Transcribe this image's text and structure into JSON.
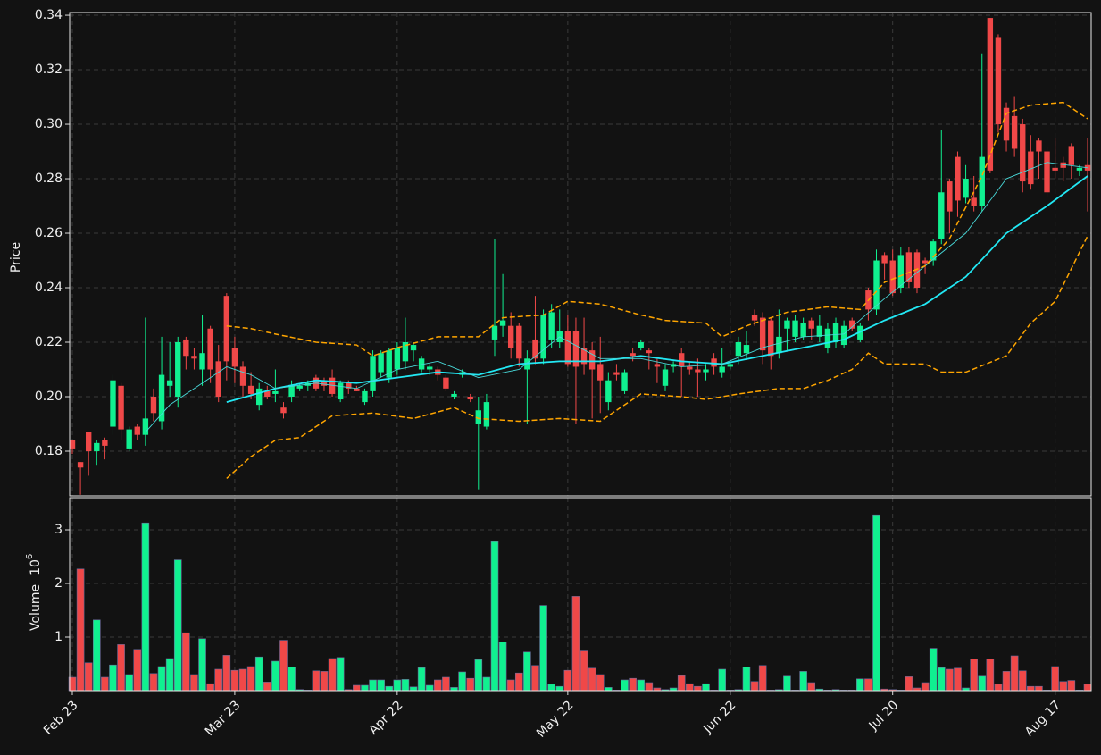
{
  "chart_data": {
    "type": "candlestick",
    "ylabel": "Price",
    "volume_label": "Volume",
    "volume_unit": {
      "base": "10",
      "exponent": "6"
    },
    "up_color": "#10f090",
    "down_color": "#f04848",
    "grid": true,
    "categories": [
      "Feb 23",
      null,
      null,
      null,
      null,
      null,
      null,
      null,
      null,
      null,
      null,
      null,
      null,
      null,
      null,
      null,
      null,
      null,
      null,
      null,
      "Mar 23",
      null,
      null,
      null,
      null,
      null,
      null,
      null,
      null,
      null,
      null,
      null,
      null,
      null,
      null,
      null,
      null,
      null,
      null,
      null,
      "Apr 22",
      null,
      null,
      null,
      null,
      null,
      null,
      null,
      null,
      null,
      null,
      null,
      null,
      null,
      null,
      null,
      null,
      null,
      null,
      null,
      null,
      "May 22",
      null,
      null,
      null,
      null,
      null,
      null,
      null,
      null,
      null,
      null,
      null,
      null,
      null,
      null,
      null,
      null,
      null,
      null,
      null,
      "Jun 22",
      null,
      null,
      null,
      null,
      null,
      null,
      null,
      null,
      null,
      null,
      null,
      null,
      null,
      null,
      null,
      null,
      null,
      null,
      null,
      "Jul 20",
      null,
      null,
      null,
      null,
      null,
      null,
      null,
      null,
      null,
      null,
      null,
      null,
      null,
      null,
      null,
      null,
      null,
      null,
      null,
      "Aug 17",
      null,
      null,
      null,
      null
    ],
    "open": [
      0.184,
      0.176,
      0.187,
      0.18,
      0.184,
      0.189,
      0.204,
      0.181,
      0.189,
      0.186,
      0.2,
      0.191,
      0.204,
      0.2,
      0.221,
      0.215,
      0.21,
      0.225,
      0.213,
      0.237,
      0.218,
      0.211,
      0.204,
      0.197,
      0.202,
      0.201,
      0.196,
      0.2,
      0.203,
      0.204,
      0.207,
      0.206,
      0.207,
      0.199,
      0.205,
      0.203,
      0.198,
      0.202,
      0.209,
      0.207,
      0.21,
      0.213,
      0.217,
      0.21,
      0.21,
      0.21,
      0.207,
      0.2,
      0.208,
      0.2,
      0.19,
      0.189,
      0.221,
      0.226,
      0.226,
      0.226,
      0.21,
      0.221,
      0.214,
      0.221,
      0.22,
      0.224,
      0.224,
      0.218,
      0.217,
      0.212,
      0.198,
      0.209,
      0.202,
      0.216,
      0.218,
      0.217,
      0.212,
      0.204,
      0.211,
      0.216,
      0.211,
      0.21,
      0.209,
      0.214,
      0.209,
      0.211,
      0.215,
      0.216,
      0.23,
      0.229,
      0.228,
      0.216,
      0.225,
      0.222,
      0.222,
      0.228,
      0.222,
      0.218,
      0.22,
      0.219,
      0.228,
      0.221,
      0.239,
      0.232,
      0.252,
      0.25,
      0.24,
      0.253,
      0.253,
      0.25,
      0.25,
      0.258,
      0.279,
      0.288,
      0.273,
      0.273,
      0.27,
      0.339,
      0.332,
      0.306,
      0.303,
      0.3,
      0.29,
      0.294,
      0.29,
      0.284,
      0.286,
      0.292,
      0.283,
      0.285
    ],
    "high": [
      0.184,
      0.176,
      0.187,
      0.184,
      0.185,
      0.208,
      0.205,
      0.189,
      0.19,
      0.229,
      0.203,
      0.222,
      0.22,
      0.222,
      0.222,
      0.218,
      0.23,
      0.226,
      0.219,
      0.238,
      0.222,
      0.213,
      0.209,
      0.205,
      0.204,
      0.21,
      0.198,
      0.206,
      0.205,
      0.206,
      0.208,
      0.207,
      0.21,
      0.206,
      0.206,
      0.204,
      0.203,
      0.217,
      0.217,
      0.218,
      0.22,
      0.229,
      0.22,
      0.215,
      0.212,
      0.211,
      0.208,
      0.202,
      0.21,
      0.201,
      0.2,
      0.201,
      0.258,
      0.245,
      0.231,
      0.227,
      0.217,
      0.237,
      0.232,
      0.234,
      0.232,
      0.23,
      0.229,
      0.229,
      0.22,
      0.222,
      0.209,
      0.212,
      0.21,
      0.218,
      0.221,
      0.218,
      0.214,
      0.212,
      0.213,
      0.218,
      0.213,
      0.214,
      0.212,
      0.216,
      0.218,
      0.213,
      0.222,
      0.224,
      0.232,
      0.231,
      0.229,
      0.232,
      0.229,
      0.23,
      0.229,
      0.229,
      0.23,
      0.227,
      0.229,
      0.228,
      0.229,
      0.227,
      0.24,
      0.254,
      0.253,
      0.254,
      0.255,
      0.255,
      0.254,
      0.251,
      0.258,
      0.298,
      0.28,
      0.29,
      0.285,
      0.281,
      0.326,
      0.339,
      0.333,
      0.308,
      0.31,
      0.302,
      0.296,
      0.295,
      0.292,
      0.295,
      0.288,
      0.293,
      0.285,
      0.295
    ],
    "low": [
      0.179,
      0.164,
      0.171,
      0.175,
      0.177,
      0.186,
      0.184,
      0.18,
      0.184,
      0.182,
      0.191,
      0.188,
      0.2,
      0.196,
      0.21,
      0.21,
      0.204,
      0.205,
      0.198,
      0.206,
      0.205,
      0.2,
      0.199,
      0.195,
      0.199,
      0.198,
      0.192,
      0.198,
      0.202,
      0.202,
      0.202,
      0.202,
      0.2,
      0.198,
      0.201,
      0.202,
      0.197,
      0.2,
      0.207,
      0.205,
      0.208,
      0.21,
      0.213,
      0.209,
      0.208,
      0.206,
      0.202,
      0.199,
      0.207,
      0.198,
      0.166,
      0.188,
      0.215,
      0.222,
      0.214,
      0.211,
      0.19,
      0.212,
      0.212,
      0.218,
      0.218,
      0.211,
      0.19,
      0.208,
      0.192,
      0.194,
      0.195,
      0.206,
      0.201,
      0.213,
      0.217,
      0.21,
      0.205,
      0.202,
      0.209,
      0.2,
      0.208,
      0.2,
      0.206,
      0.208,
      0.207,
      0.21,
      0.212,
      0.214,
      0.226,
      0.212,
      0.21,
      0.214,
      0.217,
      0.22,
      0.221,
      0.221,
      0.22,
      0.216,
      0.218,
      0.218,
      0.224,
      0.22,
      0.228,
      0.23,
      0.243,
      0.237,
      0.238,
      0.24,
      0.238,
      0.245,
      0.248,
      0.256,
      0.26,
      0.266,
      0.271,
      0.268,
      0.268,
      0.282,
      0.297,
      0.29,
      0.288,
      0.275,
      0.276,
      0.28,
      0.273,
      0.28,
      0.279,
      0.28,
      0.281,
      0.268
    ],
    "close": [
      0.181,
      0.174,
      0.18,
      0.183,
      0.182,
      0.206,
      0.188,
      0.188,
      0.186,
      0.192,
      0.194,
      0.208,
      0.206,
      0.22,
      0.215,
      0.214,
      0.216,
      0.21,
      0.2,
      0.213,
      0.211,
      0.204,
      0.201,
      0.203,
      0.2,
      0.202,
      0.194,
      0.204,
      0.204,
      0.205,
      0.203,
      0.204,
      0.201,
      0.205,
      0.203,
      0.202,
      0.202,
      0.215,
      0.216,
      0.217,
      0.218,
      0.22,
      0.219,
      0.214,
      0.211,
      0.208,
      0.203,
      0.201,
      0.209,
      0.199,
      0.195,
      0.198,
      0.226,
      0.228,
      0.218,
      0.214,
      0.214,
      0.214,
      0.23,
      0.231,
      0.224,
      0.212,
      0.211,
      0.212,
      0.21,
      0.206,
      0.206,
      0.208,
      0.209,
      0.215,
      0.22,
      0.216,
      0.211,
      0.21,
      0.212,
      0.211,
      0.21,
      0.209,
      0.21,
      0.211,
      0.211,
      0.212,
      0.22,
      0.219,
      0.228,
      0.217,
      0.215,
      0.222,
      0.228,
      0.228,
      0.227,
      0.225,
      0.226,
      0.225,
      0.227,
      0.226,
      0.225,
      0.226,
      0.232,
      0.25,
      0.249,
      0.238,
      0.252,
      0.242,
      0.24,
      0.249,
      0.257,
      0.275,
      0.268,
      0.272,
      0.28,
      0.27,
      0.288,
      0.283,
      0.3,
      0.294,
      0.291,
      0.279,
      0.278,
      0.29,
      0.275,
      0.283,
      0.284,
      0.285,
      0.284,
      0.283
    ],
    "volume": [
      0.25,
      2.27,
      0.52,
      1.32,
      0.25,
      0.48,
      0.86,
      0.3,
      0.77,
      3.13,
      0.32,
      0.45,
      0.6,
      2.44,
      1.08,
      0.3,
      0.97,
      0.13,
      0.4,
      0.66,
      0.38,
      0.4,
      0.45,
      0.63,
      0.16,
      0.55,
      0.94,
      0.44,
      0.02,
      0.01,
      0.37,
      0.36,
      0.6,
      0.62,
      0.02,
      0.1,
      0.1,
      0.2,
      0.2,
      0.08,
      0.2,
      0.21,
      0.07,
      0.43,
      0.1,
      0.2,
      0.25,
      0.06,
      0.35,
      0.23,
      0.58,
      0.25,
      2.78,
      0.91,
      0.2,
      0.33,
      0.72,
      0.47,
      1.59,
      0.12,
      0.08,
      0.38,
      1.76,
      0.74,
      0.42,
      0.3,
      0.06,
      0.01,
      0.2,
      0.23,
      0.2,
      0.15,
      0.05,
      0.02,
      0.05,
      0.28,
      0.13,
      0.08,
      0.13,
      0.01,
      0.4,
      0.01,
      0.02,
      0.44,
      0.17,
      0.47,
      0.01,
      0.02,
      0.27,
      0.01,
      0.36,
      0.15,
      0.03,
      0.01,
      0.02,
      0.01,
      0.01,
      0.22,
      0.22,
      3.28,
      0.03,
      0.02,
      0.01,
      0.26,
      0.05,
      0.15,
      0.79,
      0.43,
      0.4,
      0.42,
      0.05,
      0.59,
      0.27,
      0.59,
      0.12,
      0.36,
      0.65,
      0.37,
      0.08,
      0.08,
      0.01,
      0.45,
      0.17,
      0.19,
      0.01,
      0.12
    ],
    "lines": [
      {
        "color": "#22e8f4",
        "width": 1.8,
        "dashed": false,
        "x": [
          19,
          25,
          30,
          35,
          40,
          45,
          50,
          55,
          60,
          65,
          70,
          75,
          80,
          85,
          90,
          95,
          100,
          105,
          110,
          115,
          120,
          125
        ],
        "values": [
          0.198,
          0.203,
          0.206,
          0.205,
          0.207,
          0.209,
          0.208,
          0.212,
          0.213,
          0.213,
          0.215,
          0.213,
          0.212,
          0.215,
          0.218,
          0.221,
          0.228,
          0.234,
          0.244,
          0.26,
          0.27,
          0.281
        ]
      },
      {
        "color": "#48d8d8",
        "width": 0.9,
        "dashed": false,
        "x": [
          9,
          12,
          15,
          19,
          22,
          25,
          30,
          35,
          40,
          45,
          50,
          55,
          60,
          65,
          70,
          75,
          80,
          85,
          90,
          95,
          100,
          105,
          110,
          115,
          120,
          125
        ],
        "values": [
          0.187,
          0.197,
          0.203,
          0.211,
          0.208,
          0.203,
          0.205,
          0.203,
          0.21,
          0.213,
          0.207,
          0.21,
          0.222,
          0.214,
          0.214,
          0.211,
          0.212,
          0.218,
          0.222,
          0.223,
          0.236,
          0.248,
          0.26,
          0.28,
          0.286,
          0.284
        ]
      },
      {
        "color": "#ffa500",
        "width": 1.5,
        "dashed": true,
        "x": [
          19,
          22,
          25,
          30,
          35,
          37,
          40,
          45,
          50,
          53,
          58,
          61,
          65,
          70,
          73,
          78,
          80,
          83,
          88,
          93,
          97,
          100,
          105,
          108,
          112,
          115,
          118,
          122,
          125
        ],
        "values": [
          0.226,
          0.225,
          0.223,
          0.22,
          0.219,
          0.215,
          0.218,
          0.222,
          0.222,
          0.229,
          0.23,
          0.235,
          0.234,
          0.23,
          0.228,
          0.227,
          0.222,
          0.226,
          0.231,
          0.233,
          0.232,
          0.242,
          0.248,
          0.258,
          0.281,
          0.304,
          0.307,
          0.308,
          0.302
        ]
      },
      {
        "color": "#ffa500",
        "width": 1.5,
        "dashed": true,
        "x": [
          19,
          22,
          25,
          28,
          32,
          37,
          42,
          47,
          50,
          55,
          60,
          65,
          70,
          75,
          78,
          82,
          87,
          90,
          93,
          96,
          98,
          100,
          105,
          107,
          110,
          115,
          118,
          121,
          125
        ],
        "values": [
          0.17,
          0.178,
          0.184,
          0.185,
          0.193,
          0.194,
          0.192,
          0.196,
          0.192,
          0.191,
          0.192,
          0.191,
          0.201,
          0.2,
          0.199,
          0.201,
          0.203,
          0.203,
          0.206,
          0.21,
          0.216,
          0.212,
          0.212,
          0.209,
          0.209,
          0.215,
          0.227,
          0.235,
          0.259
        ]
      }
    ],
    "ylim": [
      0.1636,
      0.341
    ],
    "yticks": [
      0.18,
      0.22,
      0.24,
      0.26,
      0.28,
      {
        "value": 0.2,
        "label": "0.20"
      },
      {
        "value": 0.3,
        "label": "0.30"
      },
      0.32,
      0.34
    ],
    "vlim": [
      0,
      3.6
    ],
    "vticks": [
      1,
      2,
      3
    ]
  }
}
